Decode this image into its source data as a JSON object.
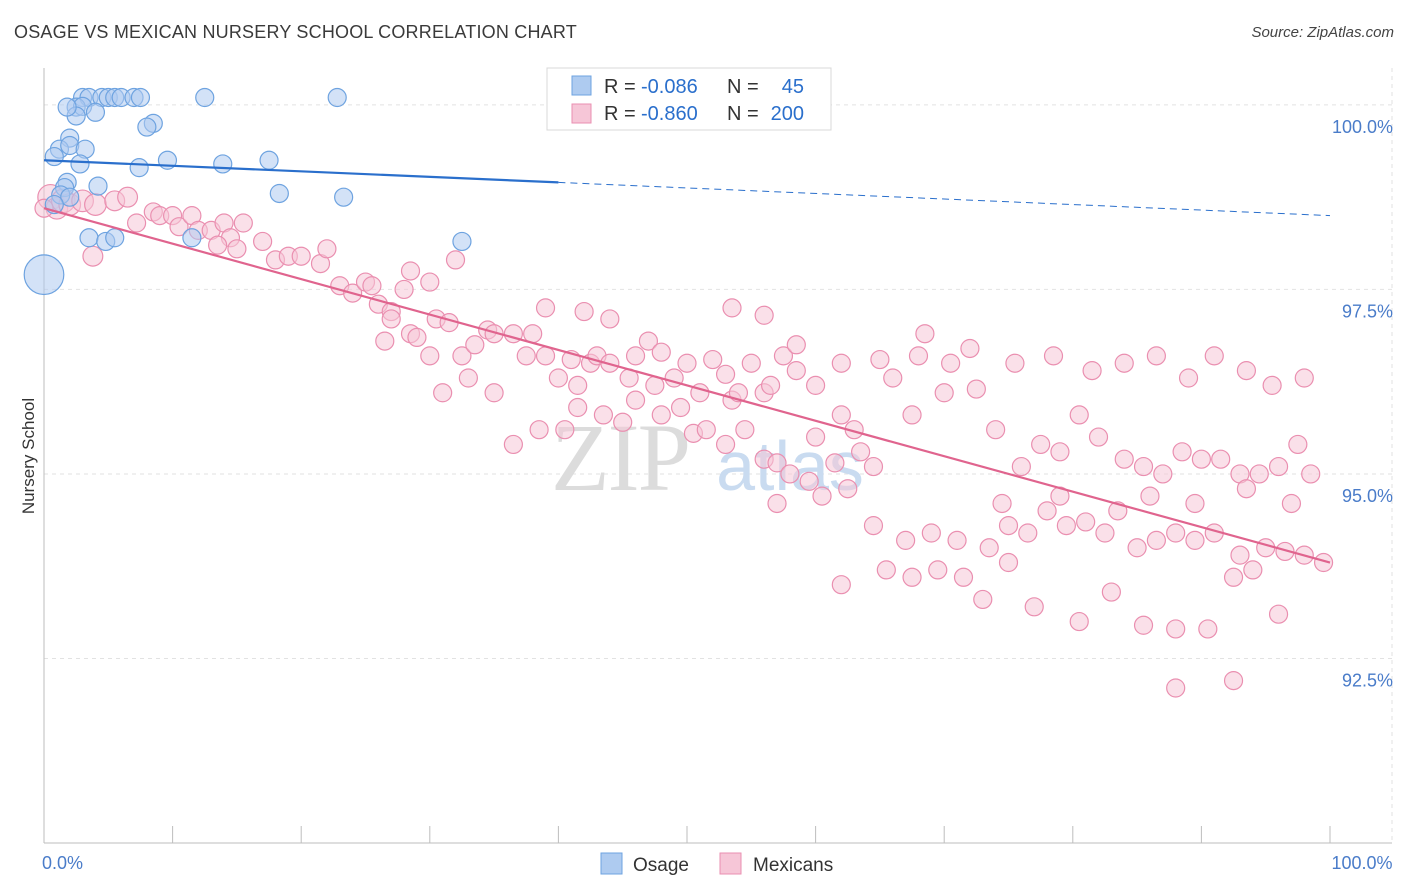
{
  "header": {
    "title": "OSAGE VS MEXICAN NURSERY SCHOOL CORRELATION CHART",
    "source": "Source: ZipAtlas.com"
  },
  "watermark": {
    "zip": "ZIP",
    "atlas": "atlas"
  },
  "colors": {
    "osage": "#6ea3e0",
    "osage_fill": "#aecbf0",
    "osage_line": "#2a6fcc",
    "mexicans": "#ea8fb0",
    "mexicans_fill": "#f6c6d7",
    "mexicans_line": "#e0648e",
    "tick_text": "#4a7cc9",
    "grid": "#e2e2e2"
  },
  "stats_box": {
    "rows": [
      {
        "series": "osage",
        "r_label": "R = ",
        "r_value": "-0.086",
        "n_label": "N = ",
        "n_value": "45"
      },
      {
        "series": "mexicans",
        "r_label": "R = ",
        "r_value": "-0.860",
        "n_label": "N = ",
        "n_value": "200"
      }
    ]
  },
  "chart_data": {
    "type": "scatter",
    "title": "OSAGE VS MEXICAN NURSERY SCHOOL CORRELATION CHART",
    "xlabel": "",
    "ylabel": "Nursery School",
    "xlim": [
      0,
      100
    ],
    "ylim": [
      90.0,
      100.5
    ],
    "x_tick_labels": [
      {
        "value": 0,
        "label": "0.0%"
      },
      {
        "value": 100,
        "label": "100.0%"
      }
    ],
    "x_minor_ticks": [
      0,
      10,
      20,
      30,
      40,
      50,
      60,
      70,
      80,
      90,
      100
    ],
    "y_ticks": [
      {
        "value": 100.0,
        "label": "100.0%"
      },
      {
        "value": 97.5,
        "label": "97.5%"
      },
      {
        "value": 95.0,
        "label": "95.0%"
      },
      {
        "value": 92.5,
        "label": "92.5%"
      }
    ],
    "grid": true,
    "legend_position": "bottom-center",
    "series": [
      {
        "name": "Osage",
        "key": "osage",
        "trend": {
          "x": [
            0,
            40,
            100
          ],
          "y": [
            99.25,
            98.95,
            98.5
          ],
          "solid_until": 40
        },
        "points": [
          [
            3.0,
            100.1
          ],
          [
            3.5,
            100.1
          ],
          [
            4.5,
            100.1
          ],
          [
            5.0,
            100.1
          ],
          [
            5.5,
            100.1
          ],
          [
            6.0,
            100.1
          ],
          [
            7.0,
            100.1
          ],
          [
            7.5,
            100.1
          ],
          [
            12.5,
            100.1
          ],
          [
            22.8,
            100.1
          ],
          [
            2.5,
            99.97
          ],
          [
            3.0,
            99.98
          ],
          [
            2.5,
            99.85
          ],
          [
            1.8,
            99.97
          ],
          [
            4.0,
            99.9
          ],
          [
            8.5,
            99.75
          ],
          [
            8.0,
            99.7
          ],
          [
            2.0,
            99.55
          ],
          [
            1.2,
            99.4
          ],
          [
            2.0,
            99.45
          ],
          [
            3.2,
            99.4
          ],
          [
            0.8,
            99.3
          ],
          [
            2.8,
            99.2
          ],
          [
            7.4,
            99.15
          ],
          [
            9.6,
            99.25
          ],
          [
            13.9,
            99.2
          ],
          [
            17.5,
            99.25
          ],
          [
            1.8,
            98.95
          ],
          [
            1.6,
            98.88
          ],
          [
            4.2,
            98.9
          ],
          [
            1.3,
            98.78
          ],
          [
            2.0,
            98.75
          ],
          [
            18.3,
            98.8
          ],
          [
            23.3,
            98.75
          ],
          [
            0.8,
            98.65
          ],
          [
            3.5,
            98.2
          ],
          [
            4.8,
            98.15
          ],
          [
            5.5,
            98.2
          ],
          [
            11.5,
            98.2
          ],
          [
            32.5,
            98.15
          ],
          [
            0.0,
            97.7
          ]
        ],
        "sizes": [
          1,
          1,
          1,
          1,
          1,
          1,
          1,
          1,
          1,
          1,
          1,
          1,
          1,
          1,
          1,
          1,
          1,
          1,
          1,
          1,
          1,
          1,
          1,
          1,
          1,
          1,
          1,
          1,
          1,
          1,
          1,
          1,
          1,
          1,
          1,
          1,
          1,
          1,
          1,
          1,
          2.2
        ]
      },
      {
        "name": "Mexicans",
        "key": "mexicans",
        "trend": {
          "x": [
            0,
            100
          ],
          "y": [
            98.6,
            93.8
          ]
        },
        "points": [
          [
            0.5,
            98.75
          ],
          [
            1.0,
            98.6
          ],
          [
            1.5,
            98.7
          ],
          [
            2.0,
            98.65
          ],
          [
            3.0,
            98.7
          ],
          [
            4.0,
            98.65
          ],
          [
            5.5,
            98.7
          ],
          [
            6.5,
            98.75
          ],
          [
            3.8,
            97.95
          ],
          [
            7.2,
            98.4
          ],
          [
            8.5,
            98.55
          ],
          [
            9.0,
            98.5
          ],
          [
            10.0,
            98.5
          ],
          [
            10.5,
            98.35
          ],
          [
            11.5,
            98.5
          ],
          [
            12.0,
            98.3
          ],
          [
            13.0,
            98.3
          ],
          [
            14.0,
            98.4
          ],
          [
            14.5,
            98.2
          ],
          [
            15.5,
            98.4
          ],
          [
            13.5,
            98.1
          ],
          [
            15.0,
            98.05
          ],
          [
            17.0,
            98.15
          ],
          [
            18.0,
            97.9
          ],
          [
            19.0,
            97.95
          ],
          [
            20.0,
            97.95
          ],
          [
            21.5,
            97.85
          ],
          [
            22.0,
            98.05
          ],
          [
            23.0,
            97.55
          ],
          [
            24.0,
            97.45
          ],
          [
            25.0,
            97.6
          ],
          [
            25.5,
            97.55
          ],
          [
            26.0,
            97.3
          ],
          [
            27.0,
            97.2
          ],
          [
            28.0,
            97.5
          ],
          [
            28.5,
            97.75
          ],
          [
            30.0,
            97.6
          ],
          [
            30.5,
            97.1
          ],
          [
            31.5,
            97.05
          ],
          [
            32.0,
            97.9
          ],
          [
            26.5,
            96.8
          ],
          [
            28.5,
            96.9
          ],
          [
            30.0,
            96.6
          ],
          [
            31.0,
            96.1
          ],
          [
            32.5,
            96.6
          ],
          [
            33.5,
            96.75
          ],
          [
            34.5,
            96.95
          ],
          [
            35.0,
            96.9
          ],
          [
            36.5,
            96.9
          ],
          [
            37.5,
            96.6
          ],
          [
            38.0,
            96.9
          ],
          [
            39.0,
            96.6
          ],
          [
            40.0,
            96.3
          ],
          [
            41.0,
            96.55
          ],
          [
            41.5,
            96.2
          ],
          [
            42.5,
            96.5
          ],
          [
            43.0,
            96.6
          ],
          [
            44.0,
            96.5
          ],
          [
            45.5,
            96.3
          ],
          [
            46.0,
            96.6
          ],
          [
            47.0,
            96.8
          ],
          [
            47.5,
            96.2
          ],
          [
            48.0,
            96.65
          ],
          [
            49.0,
            96.3
          ],
          [
            50.0,
            96.5
          ],
          [
            51.0,
            96.1
          ],
          [
            52.0,
            96.55
          ],
          [
            53.0,
            96.35
          ],
          [
            53.5,
            96.0
          ],
          [
            54.0,
            96.1
          ],
          [
            55.0,
            96.5
          ],
          [
            56.0,
            96.1
          ],
          [
            56.5,
            96.2
          ],
          [
            57.5,
            96.6
          ],
          [
            58.5,
            96.4
          ],
          [
            27.0,
            97.1
          ],
          [
            29.0,
            96.85
          ],
          [
            33.0,
            96.3
          ],
          [
            35.0,
            96.1
          ],
          [
            36.5,
            95.4
          ],
          [
            38.5,
            95.6
          ],
          [
            40.5,
            95.6
          ],
          [
            41.5,
            95.9
          ],
          [
            43.5,
            95.8
          ],
          [
            45.0,
            95.7
          ],
          [
            46.0,
            96.0
          ],
          [
            48.0,
            95.8
          ],
          [
            49.5,
            95.9
          ],
          [
            50.5,
            95.55
          ],
          [
            51.5,
            95.6
          ],
          [
            53.0,
            95.4
          ],
          [
            54.5,
            95.6
          ],
          [
            56.0,
            95.2
          ],
          [
            57.0,
            95.15
          ],
          [
            58.0,
            95.0
          ],
          [
            60.0,
            95.5
          ],
          [
            61.5,
            95.15
          ],
          [
            63.0,
            95.6
          ],
          [
            64.5,
            95.1
          ],
          [
            62.0,
            95.8
          ],
          [
            63.5,
            95.3
          ],
          [
            67.5,
            95.8
          ],
          [
            66.0,
            96.3
          ],
          [
            70.0,
            96.1
          ],
          [
            72.5,
            96.15
          ],
          [
            74.0,
            95.6
          ],
          [
            76.0,
            95.1
          ],
          [
            77.5,
            95.4
          ],
          [
            79.0,
            95.3
          ],
          [
            80.5,
            95.8
          ],
          [
            82.0,
            95.5
          ],
          [
            84.0,
            95.2
          ],
          [
            85.5,
            95.1
          ],
          [
            87.0,
            95.0
          ],
          [
            88.5,
            95.3
          ],
          [
            90.0,
            95.2
          ],
          [
            91.5,
            95.2
          ],
          [
            93.0,
            95.0
          ],
          [
            94.5,
            95.0
          ],
          [
            96.0,
            95.1
          ],
          [
            97.5,
            95.4
          ],
          [
            98.5,
            95.0
          ],
          [
            57.0,
            94.6
          ],
          [
            59.5,
            94.9
          ],
          [
            60.5,
            94.7
          ],
          [
            62.5,
            94.8
          ],
          [
            64.5,
            94.3
          ],
          [
            67.0,
            94.1
          ],
          [
            69.0,
            94.2
          ],
          [
            71.0,
            94.1
          ],
          [
            73.5,
            94.0
          ],
          [
            75.0,
            94.3
          ],
          [
            76.5,
            94.2
          ],
          [
            78.0,
            94.5
          ],
          [
            79.5,
            94.3
          ],
          [
            81.0,
            94.35
          ],
          [
            82.5,
            94.2
          ],
          [
            85.0,
            94.0
          ],
          [
            86.5,
            94.1
          ],
          [
            88.0,
            94.2
          ],
          [
            89.5,
            94.1
          ],
          [
            91.0,
            94.2
          ],
          [
            93.0,
            93.9
          ],
          [
            95.0,
            94.0
          ],
          [
            96.5,
            93.95
          ],
          [
            98.0,
            93.9
          ],
          [
            99.5,
            93.8
          ],
          [
            62.0,
            93.5
          ],
          [
            65.5,
            93.7
          ],
          [
            67.5,
            93.6
          ],
          [
            69.5,
            93.7
          ],
          [
            71.5,
            93.6
          ],
          [
            73.0,
            93.3
          ],
          [
            75.0,
            93.8
          ],
          [
            77.0,
            93.2
          ],
          [
            80.5,
            93.0
          ],
          [
            83.0,
            93.4
          ],
          [
            85.5,
            92.95
          ],
          [
            88.0,
            92.9
          ],
          [
            90.5,
            92.9
          ],
          [
            92.5,
            93.6
          ],
          [
            94.0,
            93.7
          ],
          [
            96.0,
            93.1
          ],
          [
            88.0,
            92.1
          ],
          [
            92.5,
            92.2
          ],
          [
            74.5,
            94.6
          ],
          [
            79.0,
            94.7
          ],
          [
            83.5,
            94.5
          ],
          [
            86.0,
            94.7
          ],
          [
            89.5,
            94.6
          ],
          [
            93.5,
            94.8
          ],
          [
            97.0,
            94.6
          ],
          [
            58.5,
            96.75
          ],
          [
            60.0,
            96.2
          ],
          [
            62.0,
            96.5
          ],
          [
            65.0,
            96.55
          ],
          [
            68.0,
            96.6
          ],
          [
            70.5,
            96.5
          ],
          [
            72.0,
            96.7
          ],
          [
            75.5,
            96.5
          ],
          [
            78.5,
            96.6
          ],
          [
            81.5,
            96.4
          ],
          [
            84.0,
            96.5
          ],
          [
            86.5,
            96.6
          ],
          [
            89.0,
            96.3
          ],
          [
            91.0,
            96.6
          ],
          [
            93.5,
            96.4
          ],
          [
            95.5,
            96.2
          ],
          [
            98.0,
            96.3
          ],
          [
            68.5,
            96.9
          ],
          [
            53.5,
            97.25
          ],
          [
            56.0,
            97.15
          ],
          [
            42.0,
            97.2
          ],
          [
            39.0,
            97.25
          ],
          [
            44.0,
            97.1
          ],
          [
            0.0,
            98.6
          ]
        ],
        "sizes": [
          1.4,
          1.2,
          1.3,
          1.2,
          1.2,
          1.2,
          1.1,
          1.1,
          1.1,
          1,
          1,
          1,
          1,
          1,
          1,
          1,
          1,
          1,
          1,
          1,
          1,
          1,
          1,
          1,
          1,
          1,
          1,
          1,
          1,
          1,
          1,
          1,
          1,
          1,
          1,
          1,
          1,
          1,
          1,
          1,
          1,
          1,
          1,
          1,
          1,
          1,
          1,
          1,
          1,
          1,
          1,
          1,
          1,
          1,
          1,
          1,
          1,
          1,
          1,
          1,
          1,
          1,
          1,
          1,
          1,
          1,
          1,
          1,
          1,
          1,
          1,
          1,
          1,
          1,
          1,
          1,
          1,
          1,
          1,
          1,
          1,
          1,
          1,
          1,
          1,
          1,
          1,
          1,
          1,
          1,
          1,
          1,
          1,
          1,
          1,
          1,
          1,
          1,
          1,
          1,
          1,
          1,
          1,
          1,
          1,
          1,
          1,
          1,
          1,
          1,
          1,
          1,
          1,
          1,
          1,
          1,
          1,
          1,
          1,
          1,
          1,
          1,
          1,
          1,
          1,
          1,
          1,
          1,
          1,
          1,
          1,
          1,
          1,
          1,
          1,
          1,
          1,
          1,
          1,
          1,
          1,
          1,
          1,
          1,
          1,
          1,
          1,
          1,
          1,
          1,
          1,
          1,
          1,
          1,
          1,
          1,
          1,
          1,
          1,
          1,
          1,
          1,
          1,
          1,
          1,
          1,
          1,
          1,
          1,
          1,
          1,
          1,
          1,
          1,
          1,
          1,
          1,
          1,
          1,
          1,
          1,
          1,
          1,
          1,
          1,
          1,
          1,
          1,
          1,
          1,
          1,
          1,
          1,
          1,
          1,
          1,
          1,
          1,
          1,
          1.6
        ]
      }
    ]
  },
  "legend": {
    "items": [
      {
        "key": "osage",
        "label": "Osage"
      },
      {
        "key": "mexicans",
        "label": "Mexicans"
      }
    ]
  }
}
